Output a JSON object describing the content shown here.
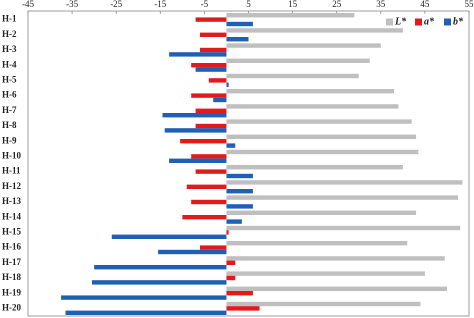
{
  "chart_data": {
    "type": "bar",
    "orientation": "horizontal",
    "categories": [
      "H-1",
      "H-2",
      "H-3",
      "H-4",
      "H-5",
      "H-6",
      "H-7",
      "H-8",
      "H-9",
      "H-10",
      "H-11",
      "H-12",
      "H-13",
      "H-14",
      "H-15",
      "H-16",
      "H-17",
      "H-18",
      "H-19",
      "H-20"
    ],
    "series": [
      {
        "name": "L*",
        "color": "#bfbfbf",
        "values": [
          29,
          40,
          35,
          32.5,
          30,
          38,
          39,
          42,
          43,
          43.5,
          40,
          53.5,
          52.5,
          43,
          53,
          41,
          49.5,
          45,
          50,
          44
        ]
      },
      {
        "name": "a*",
        "color": "#e31a1c",
        "values": [
          -7,
          -6,
          -6,
          -8,
          -4,
          -8,
          -7,
          -7,
          -10.5,
          -8,
          -7,
          -9,
          -8,
          -10,
          0.5,
          -6,
          2,
          2,
          6,
          7.5
        ]
      },
      {
        "name": "b*",
        "color": "#1f5fb4",
        "values": [
          6,
          5,
          -13,
          -7,
          0.5,
          -3,
          -14.5,
          -14,
          2,
          -13,
          6,
          6,
          6,
          3.5,
          -26,
          -15.5,
          -30,
          -30.5,
          -37.5,
          -36.5
        ]
      }
    ],
    "xlim": [
      -45,
      55
    ],
    "xticks": [
      -45,
      -35,
      -25,
      -15,
      -5,
      5,
      15,
      25,
      35,
      45,
      55
    ],
    "legend": "upper right"
  }
}
